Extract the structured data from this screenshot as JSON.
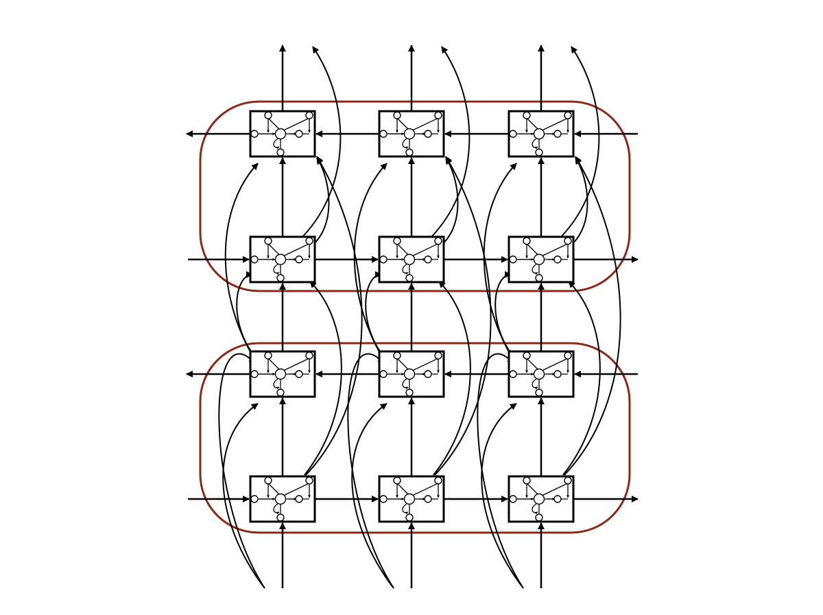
{
  "diagram": {
    "kind": "stacked bidirectional recurrent network of memory-cell blocks",
    "layers": 4,
    "columns": 3,
    "layer_directions": [
      "forward",
      "backward",
      "forward",
      "backward"
    ],
    "group_count": 2,
    "colors": {
      "stroke": "#000000",
      "group_outline": "#8b2a1a",
      "background": "#ffffff"
    }
  }
}
